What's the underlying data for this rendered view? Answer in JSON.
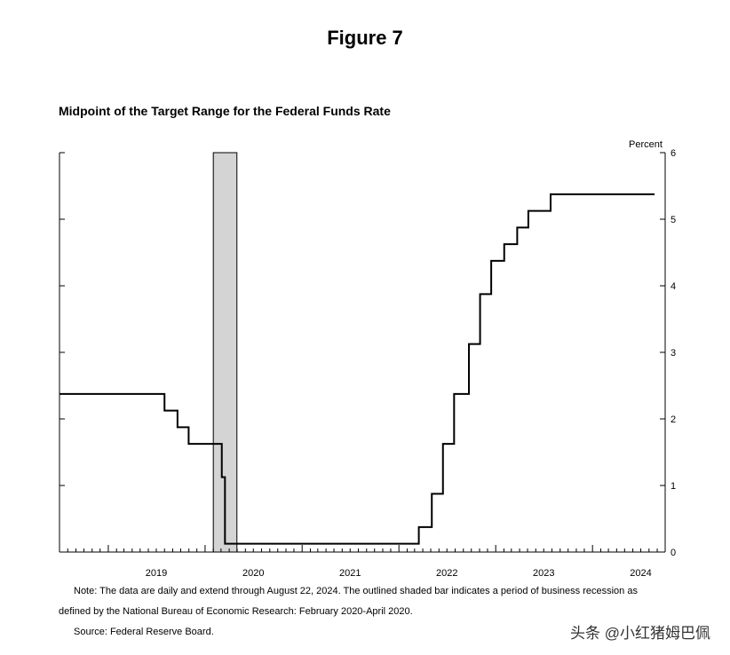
{
  "figure_title": "Figure 7",
  "chart_data": {
    "type": "line",
    "title": "Midpoint of the Target Range for the Federal Funds Rate",
    "ylabel": "Percent",
    "ylim": [
      0,
      6
    ],
    "yticks": [
      0,
      1,
      2,
      3,
      4,
      5,
      6
    ],
    "xlim": [
      "2018-07-01",
      "2024-10-01"
    ],
    "xtick_labels": [
      "2019",
      "2020",
      "2021",
      "2022",
      "2023",
      "2024"
    ],
    "y_axis_side": "right",
    "grid": false,
    "shaded_periods": [
      {
        "start": "2020-02-01",
        "end": "2020-04-30"
      }
    ],
    "series": [
      {
        "steps": [
          {
            "date": "2018-07-01",
            "rate": 2.375
          },
          {
            "date": "2019-08-01",
            "rate": 2.125
          },
          {
            "date": "2019-09-19",
            "rate": 1.875
          },
          {
            "date": "2019-10-31",
            "rate": 1.625
          },
          {
            "date": "2020-03-04",
            "rate": 1.125
          },
          {
            "date": "2020-03-16",
            "rate": 0.125
          },
          {
            "date": "2022-03-17",
            "rate": 0.375
          },
          {
            "date": "2022-05-05",
            "rate": 0.875
          },
          {
            "date": "2022-06-16",
            "rate": 1.625
          },
          {
            "date": "2022-07-28",
            "rate": 2.375
          },
          {
            "date": "2022-09-22",
            "rate": 3.125
          },
          {
            "date": "2022-11-03",
            "rate": 3.875
          },
          {
            "date": "2022-12-15",
            "rate": 4.375
          },
          {
            "date": "2023-02-02",
            "rate": 4.625
          },
          {
            "date": "2023-03-23",
            "rate": 4.875
          },
          {
            "date": "2023-05-04",
            "rate": 5.125
          },
          {
            "date": "2023-07-27",
            "rate": 5.375
          },
          {
            "date": "2024-08-22",
            "rate": 5.375
          }
        ]
      }
    ]
  },
  "notes": {
    "line1": "Note: The data are daily and extend through August 22, 2024. The outlined shaded bar indicates a period of business recession as",
    "line2": "defined by the National Bureau of Economic Research: February 2020-April 2020.",
    "source": "Source: Federal Reserve Board."
  },
  "watermark": "头条 @小红猪姆巴佩"
}
